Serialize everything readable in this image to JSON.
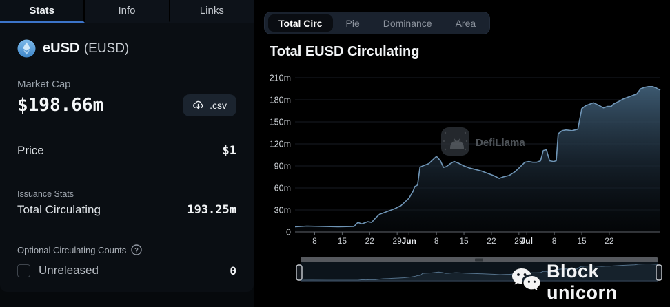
{
  "colors": {
    "page_bg": "#000000",
    "panel_bg": "#0a0e13",
    "accent_blue": "#3c74c9",
    "chart_line": "#6f95b6",
    "chart_fill_top": "#3f5d75",
    "grid_line": "#171c23"
  },
  "left_panel": {
    "tabs": [
      {
        "label": "Stats",
        "active": true
      },
      {
        "label": "Info",
        "active": false
      },
      {
        "label": "Links",
        "active": false
      }
    ],
    "coin": {
      "name": "eUSD",
      "ticker": "(EUSD)"
    },
    "market_cap": {
      "label": "Market Cap",
      "value": "$198.66m"
    },
    "csv_button": {
      "label": ".csv"
    },
    "price": {
      "label": "Price",
      "value": "$1"
    },
    "issuance": {
      "section_label": "Issuance Stats",
      "row_label": "Total Circulating",
      "row_value": "193.25m"
    },
    "optional_counts": {
      "section_label": "Optional Circulating Counts",
      "checkbox_label": "Unreleased",
      "checkbox_checked": false,
      "value": "0"
    }
  },
  "right_panel": {
    "tabs": [
      {
        "label": "Total Circ",
        "active": true
      },
      {
        "label": "Pie",
        "active": false
      },
      {
        "label": "Dominance",
        "active": false
      },
      {
        "label": "Area",
        "active": false
      }
    ],
    "title": "Total EUSD Circulating",
    "defillama_watermark": "DefiLlama",
    "overlay_watermark": "Block unicorn"
  },
  "chart_data": {
    "type": "area",
    "title": "Total EUSD Circulating",
    "series_name": "Total EUSD Circulating",
    "unit": "millions",
    "x_note": "days since May 3",
    "xlim": [
      0,
      93
    ],
    "ylim": [
      0,
      210
    ],
    "grid": "horizontal",
    "legend": "none",
    "yticks": [
      {
        "value": 0,
        "label": "0"
      },
      {
        "value": 30,
        "label": "30m"
      },
      {
        "value": 60,
        "label": "60m"
      },
      {
        "value": 90,
        "label": "90m"
      },
      {
        "value": 120,
        "label": "120m"
      },
      {
        "value": 150,
        "label": "150m"
      },
      {
        "value": 180,
        "label": "180m"
      },
      {
        "value": 210,
        "label": "210m"
      }
    ],
    "xticks": [
      {
        "value": 5,
        "label": "8",
        "bold": false
      },
      {
        "value": 12,
        "label": "15",
        "bold": false
      },
      {
        "value": 19,
        "label": "22",
        "bold": false
      },
      {
        "value": 26,
        "label": "29",
        "bold": false
      },
      {
        "value": 29,
        "label": "Jun",
        "bold": true
      },
      {
        "value": 36,
        "label": "8",
        "bold": false
      },
      {
        "value": 43,
        "label": "15",
        "bold": false
      },
      {
        "value": 50,
        "label": "22",
        "bold": false
      },
      {
        "value": 57,
        "label": "29",
        "bold": false
      },
      {
        "value": 59,
        "label": "Jul",
        "bold": true
      },
      {
        "value": 66,
        "label": "8",
        "bold": false
      },
      {
        "value": 73,
        "label": "15",
        "bold": false
      },
      {
        "value": 80,
        "label": "22",
        "bold": false
      }
    ],
    "points": [
      [
        0,
        7
      ],
      [
        3,
        8
      ],
      [
        7,
        7.5
      ],
      [
        11,
        7
      ],
      [
        15,
        7.5
      ],
      [
        16,
        13
      ],
      [
        17,
        11
      ],
      [
        18.5,
        14
      ],
      [
        19.5,
        13
      ],
      [
        20.5,
        19
      ],
      [
        21.5,
        24
      ],
      [
        23,
        27
      ],
      [
        24,
        29
      ],
      [
        25.5,
        32
      ],
      [
        27,
        36
      ],
      [
        28,
        41
      ],
      [
        29,
        46
      ],
      [
        30,
        55
      ],
      [
        30.5,
        62
      ],
      [
        31.2,
        64
      ],
      [
        31.8,
        88
      ],
      [
        32.5,
        90
      ],
      [
        34,
        93
      ],
      [
        35,
        98
      ],
      [
        36,
        103
      ],
      [
        37,
        97
      ],
      [
        37.8,
        88
      ],
      [
        38.5,
        89
      ],
      [
        39.5,
        93
      ],
      [
        40.5,
        96
      ],
      [
        41.5,
        94
      ],
      [
        43,
        90
      ],
      [
        44.5,
        87
      ],
      [
        46,
        85
      ],
      [
        47.5,
        83
      ],
      [
        49,
        80
      ],
      [
        50.5,
        77
      ],
      [
        52,
        73
      ],
      [
        53,
        75
      ],
      [
        54.5,
        77
      ],
      [
        56,
        82
      ],
      [
        57,
        87
      ],
      [
        58.5,
        95
      ],
      [
        59.5,
        96
      ],
      [
        60.5,
        95
      ],
      [
        61.5,
        95
      ],
      [
        62.5,
        97
      ],
      [
        63.2,
        111
      ],
      [
        64,
        112
      ],
      [
        64.8,
        97
      ],
      [
        65.8,
        96
      ],
      [
        66.5,
        97
      ],
      [
        67,
        134
      ],
      [
        68,
        138
      ],
      [
        69,
        139
      ],
      [
        70.5,
        138
      ],
      [
        72,
        140
      ],
      [
        73,
        168
      ],
      [
        74,
        172
      ],
      [
        75,
        174
      ],
      [
        76,
        176
      ],
      [
        77.5,
        172
      ],
      [
        78.5,
        169
      ],
      [
        79.5,
        171
      ],
      [
        80.5,
        171
      ],
      [
        81,
        174
      ],
      [
        82.5,
        178
      ],
      [
        83.5,
        181
      ],
      [
        85,
        184
      ],
      [
        86,
        186
      ],
      [
        87,
        188
      ],
      [
        88,
        195
      ],
      [
        89,
        197
      ],
      [
        90,
        198
      ],
      [
        91,
        198
      ],
      [
        92,
        196
      ],
      [
        93,
        193
      ]
    ]
  }
}
